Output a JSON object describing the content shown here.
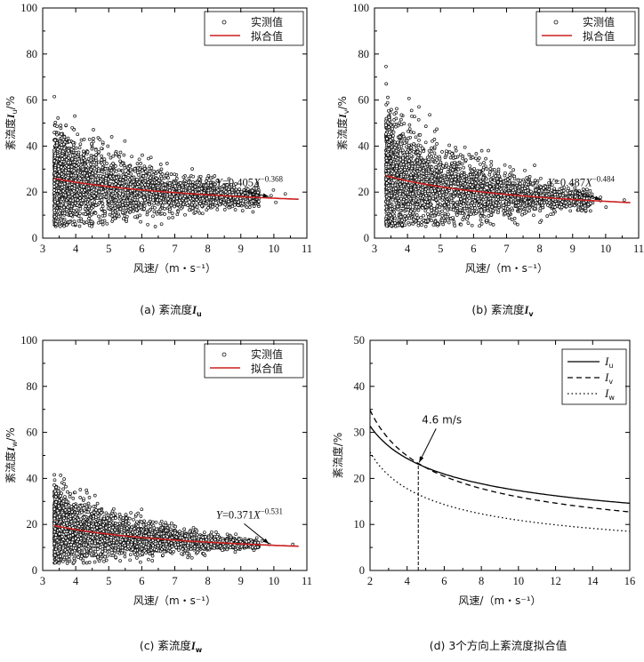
{
  "chart_data": [
    {
      "type": "scatter",
      "caption": "(a) 紊流度I",
      "caption_sub": "u",
      "xlabel": "风速/（m・s⁻¹）",
      "ylabel": "紊流度I",
      "ylabel_sub": "u",
      "ylabel_suffix": "/%",
      "xlim": [
        3,
        11
      ],
      "ylim": [
        0,
        100
      ],
      "xticks": [
        "3",
        "4",
        "5",
        "6",
        "7",
        "8",
        "9",
        "10",
        "11"
      ],
      "yticks": [
        "0",
        "20",
        "40",
        "60",
        "80",
        "100"
      ],
      "legend": {
        "position": "top-right",
        "items": [
          "实测值",
          "拟合值"
        ]
      },
      "fit": {
        "name": "拟合值",
        "a": 0.405,
        "b": -0.368,
        "color": "#cc1f1f"
      },
      "equation": {
        "y": "Y",
        "eq": "=0.405",
        "x": "X",
        "exp": "−0.368"
      },
      "scatter": {
        "name": "实测值",
        "count": 3000,
        "mean": 24,
        "spread": 0.42,
        "floor": 5
      }
    },
    {
      "type": "scatter",
      "caption": "(b) 紊流度I",
      "caption_sub": "v",
      "xlabel": "风速/（m・s⁻¹）",
      "ylabel": "紊流度I",
      "ylabel_sub": "v",
      "ylabel_suffix": "/%",
      "xlim": [
        3,
        11
      ],
      "ylim": [
        0,
        100
      ],
      "xticks": [
        "3",
        "4",
        "5",
        "6",
        "7",
        "8",
        "9",
        "10",
        "11"
      ],
      "yticks": [
        "0",
        "20",
        "40",
        "60",
        "80",
        "100"
      ],
      "legend": {
        "position": "top-right",
        "items": [
          "实测值",
          "拟合值"
        ]
      },
      "fit": {
        "name": "拟合值",
        "a": 0.487,
        "b": -0.484,
        "color": "#cc1f1f"
      },
      "equation": {
        "y": "Y",
        "eq": "=0.487",
        "x": "X",
        "exp": "−0.484"
      },
      "scatter": {
        "name": "实测值",
        "count": 3000,
        "mean": 24,
        "spread": 0.5,
        "floor": 5
      }
    },
    {
      "type": "scatter",
      "caption": "(c) 紊流度I",
      "caption_sub": "w",
      "xlabel": "风速/（m・s⁻¹）",
      "ylabel": "紊流度I",
      "ylabel_sub": "w",
      "ylabel_suffix": "/%",
      "xlim": [
        3,
        11
      ],
      "ylim": [
        0,
        100
      ],
      "xticks": [
        "3",
        "4",
        "5",
        "6",
        "7",
        "8",
        "9",
        "10",
        "11"
      ],
      "yticks": [
        "0",
        "20",
        "40",
        "60",
        "80",
        "100"
      ],
      "legend": {
        "position": "top-right",
        "items": [
          "实测值",
          "拟合值"
        ]
      },
      "fit": {
        "name": "拟合值",
        "a": 0.371,
        "b": -0.531,
        "color": "#cc1f1f"
      },
      "equation": {
        "y": "Y",
        "eq": "=0.371",
        "x": "X",
        "exp": "−0.531"
      },
      "scatter": {
        "name": "实测值",
        "count": 3000,
        "mean": 16,
        "spread": 0.4,
        "floor": 3
      }
    },
    {
      "type": "line",
      "caption": "(d) 3个方向上紊流度拟合值",
      "xlabel": "风速/（m・s⁻¹）",
      "ylabel": "紊流度/%",
      "xlim": [
        2,
        16
      ],
      "ylim": [
        0,
        50
      ],
      "xticks": [
        "2",
        "4",
        "6",
        "8",
        "10",
        "12",
        "14",
        "16"
      ],
      "yticks": [
        "0",
        "10",
        "20",
        "30",
        "40",
        "50"
      ],
      "legend": {
        "position": "top-right"
      },
      "series": [
        {
          "name": "I",
          "sub": "u",
          "a": 0.405,
          "b": -0.368,
          "style": "solid"
        },
        {
          "name": "I",
          "sub": "v",
          "a": 0.487,
          "b": -0.484,
          "style": "dashed"
        },
        {
          "name": "I",
          "sub": "w",
          "a": 0.371,
          "b": -0.531,
          "style": "dotted"
        }
      ],
      "annotation": {
        "text": "4.6 m/s",
        "x": 4.6
      }
    }
  ]
}
